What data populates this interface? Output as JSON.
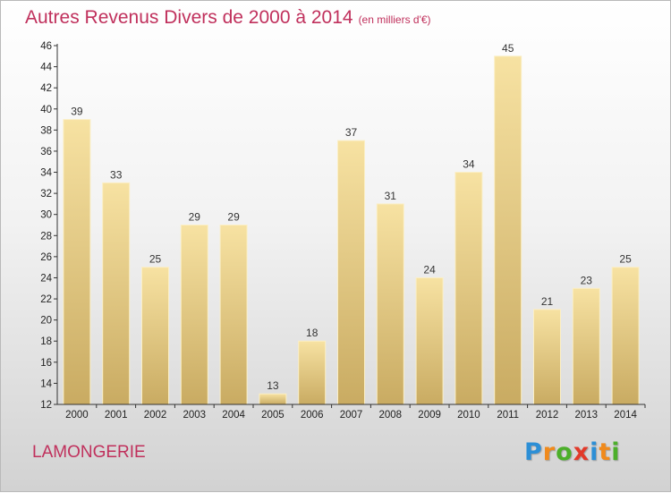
{
  "title": "Autres Revenus Divers de 2000 à 2014",
  "subtitle": "(en milliers d'€)",
  "commune": "LAMONGERIE",
  "logo": {
    "letters": [
      {
        "char": "P",
        "color": "#2c8fd6"
      },
      {
        "char": "r",
        "color": "#f08a1c"
      },
      {
        "char": "o",
        "color": "#4caf2a"
      },
      {
        "char": "x",
        "color": "#e23a2a"
      },
      {
        "char": "i",
        "color": "#2c8fd6"
      },
      {
        "char": "t",
        "color": "#f08a1c"
      },
      {
        "char": "i",
        "color": "#4caf2a"
      }
    ]
  },
  "colors": {
    "accent": "#c0305c",
    "bar_light": "#f7e2a2",
    "bar_dark": "#c9ab62",
    "axis": "#333333"
  },
  "chart_data": {
    "type": "bar",
    "categories": [
      "2000",
      "2001",
      "2002",
      "2003",
      "2004",
      "2005",
      "2006",
      "2007",
      "2008",
      "2009",
      "2010",
      "2011",
      "2012",
      "2013",
      "2014"
    ],
    "values": [
      39,
      33,
      25,
      29,
      29,
      13,
      18,
      37,
      31,
      24,
      34,
      45,
      21,
      23,
      25
    ],
    "ylim": [
      12,
      46
    ],
    "yticks": [
      12,
      14,
      16,
      18,
      20,
      22,
      24,
      26,
      28,
      30,
      32,
      34,
      36,
      38,
      40,
      42,
      44,
      46
    ],
    "grid": false,
    "data_labels": true
  }
}
